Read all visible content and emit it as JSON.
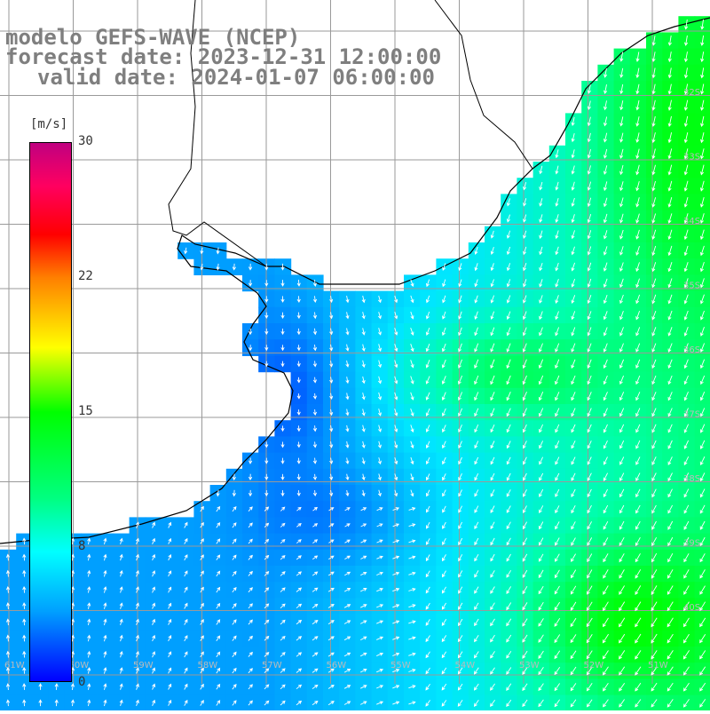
{
  "title": {
    "line1": "modelo GEFS-WAVE (NCEP)",
    "line2": "forecast date: 2023-12-31 12:00:00",
    "line3": "valid date: 2024-01-07 06:00:00"
  },
  "colorbar": {
    "unit": "[m/s]",
    "ticks": [
      "30",
      "22",
      "15",
      "8",
      "0"
    ],
    "tick_values": [
      30,
      22,
      15,
      8,
      0
    ],
    "range": [
      0,
      30
    ],
    "colors": [
      "#0000ff",
      "#00a0ff",
      "#00ffff",
      "#00ff80",
      "#00ff00",
      "#ffff00",
      "#ff7f00",
      "#ff0000",
      "#ff0060",
      "#c00080"
    ]
  },
  "map": {
    "land_color": "#ffffff",
    "grid_color": "#9a9a9a",
    "coast_color": "#000000",
    "arrow_color": "#ffffff",
    "lat_labels": [
      "32S",
      "33S",
      "34S",
      "35S",
      "36S",
      "37S",
      "38S",
      "39S",
      "40S"
    ],
    "lon_labels": [
      "61W",
      "60W",
      "59W",
      "58W",
      "57W",
      "56W",
      "55W",
      "54W",
      "53W",
      "52W",
      "51W"
    ]
  }
}
